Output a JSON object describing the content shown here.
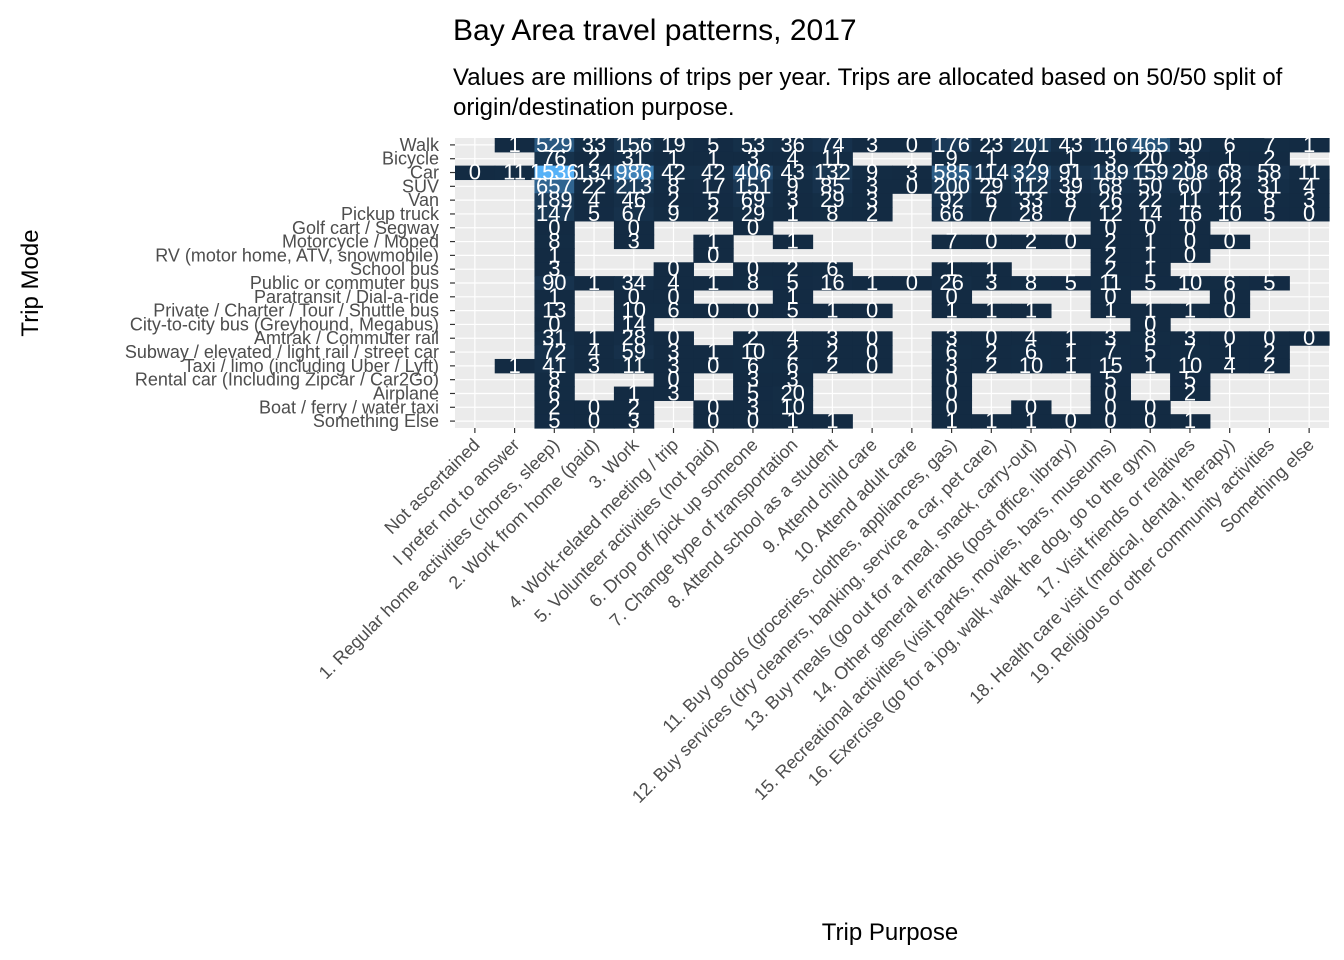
{
  "chart_data": {
    "type": "heatmap",
    "title": "Bay Area travel patterns, 2017",
    "subtitle": "Values are millions of trips per year. Trips are allocated based on 50/50 split of origin/destination purpose.",
    "xlabel": "Trip Purpose",
    "ylabel": "Trip Mode",
    "grid": true,
    "legend": "none",
    "colors": {
      "panel": "#ebebeb",
      "grid": "#ffffff",
      "low": "#132b43",
      "high": "#56b1f7",
      "label": "#ffffff"
    },
    "x": [
      "Not ascertained",
      "I prefer not to answer",
      "1. Regular home activities (chores, sleep)",
      "2. Work from home (paid)",
      "3. Work",
      "4. Work-related meeting / trip",
      "5. Volunteer activities (not paid)",
      "6. Drop off /pick up someone",
      "7. Change type of transportation",
      "8. Attend school as a student",
      "9. Attend child care",
      "10. Attend adult care",
      "11. Buy goods (groceries, clothes, appliances, gas)",
      "12. Buy services (dry cleaners, banking, service a car, pet care)",
      "13. Buy meals (go out for a meal, snack, carry-out)",
      "14. Other general errands (post office, library)",
      "15. Recreational activities (visit parks, movies, bars, museums)",
      "16. Exercise (go for a jog, walk, walk the dog, go to the gym)",
      "17. Visit friends or relatives",
      "18. Health care visit (medical, dental, therapy)",
      "19. Religious or other community activities",
      "Something else"
    ],
    "y": [
      "Walk",
      "Bicycle",
      "Car",
      "SUV",
      "Van",
      "Pickup truck",
      "Golf cart / Segway",
      "Motorcycle / Moped",
      "RV (motor home, ATV, snowmobile)",
      "School bus",
      "Public or commuter bus",
      "Paratransit / Dial-a-ride",
      "Private / Charter / Tour / Shuttle bus",
      "City-to-city bus (Greyhound, Megabus)",
      "Amtrak / Commuter rail",
      "Subway / elevated / light rail / street car",
      "Taxi / limo (including Uber / Lyft)",
      "Rental car (Including Zipcar / Car2Go)",
      "Airplane",
      "Boat / ferry / water taxi",
      "Something Else"
    ],
    "values": [
      [
        null,
        1,
        529,
        33,
        156,
        19,
        5,
        53,
        36,
        74,
        3,
        0,
        176,
        23,
        201,
        43,
        116,
        465,
        50,
        6,
        7,
        1
      ],
      [
        null,
        null,
        76,
        2,
        31,
        1,
        1,
        3,
        4,
        11,
        null,
        null,
        9,
        1,
        7,
        1,
        3,
        20,
        3,
        1,
        2,
        null
      ],
      [
        0,
        11,
        1536,
        134,
        986,
        42,
        42,
        406,
        43,
        132,
        9,
        3,
        585,
        114,
        329,
        91,
        189,
        159,
        208,
        68,
        58,
        11
      ],
      [
        null,
        null,
        657,
        22,
        213,
        8,
        17,
        151,
        9,
        85,
        3,
        0,
        200,
        29,
        112,
        39,
        68,
        50,
        60,
        12,
        31,
        4
      ],
      [
        null,
        null,
        189,
        4,
        46,
        2,
        5,
        69,
        3,
        29,
        3,
        null,
        92,
        6,
        33,
        8,
        26,
        22,
        11,
        12,
        8,
        3
      ],
      [
        null,
        null,
        147,
        5,
        67,
        9,
        2,
        29,
        1,
        8,
        2,
        null,
        66,
        7,
        28,
        7,
        12,
        14,
        16,
        10,
        5,
        0
      ],
      [
        null,
        null,
        0,
        null,
        0,
        null,
        null,
        0,
        null,
        null,
        null,
        null,
        null,
        null,
        null,
        null,
        0,
        0,
        0,
        null,
        null,
        null
      ],
      [
        null,
        null,
        8,
        null,
        3,
        null,
        1,
        null,
        1,
        null,
        null,
        null,
        7,
        0,
        2,
        0,
        2,
        1,
        0,
        0,
        null,
        null
      ],
      [
        null,
        null,
        1,
        null,
        null,
        null,
        0,
        null,
        null,
        null,
        null,
        null,
        null,
        null,
        null,
        null,
        2,
        1,
        0,
        null,
        null,
        null
      ],
      [
        null,
        null,
        3,
        null,
        null,
        0,
        null,
        0,
        2,
        6,
        null,
        null,
        1,
        1,
        null,
        null,
        2,
        1,
        null,
        null,
        null,
        null
      ],
      [
        null,
        null,
        90,
        1,
        34,
        4,
        1,
        8,
        5,
        16,
        1,
        0,
        26,
        3,
        8,
        5,
        11,
        5,
        10,
        6,
        5,
        null
      ],
      [
        null,
        null,
        1,
        null,
        0,
        0,
        null,
        null,
        1,
        null,
        null,
        null,
        0,
        null,
        null,
        null,
        0,
        null,
        null,
        0,
        null,
        null
      ],
      [
        null,
        null,
        13,
        null,
        10,
        6,
        0,
        0,
        5,
        1,
        0,
        null,
        1,
        1,
        1,
        null,
        1,
        1,
        1,
        0,
        null,
        null
      ],
      [
        null,
        null,
        0,
        null,
        14,
        null,
        null,
        null,
        null,
        null,
        null,
        null,
        null,
        null,
        null,
        null,
        null,
        0,
        null,
        null,
        null,
        null
      ],
      [
        null,
        null,
        31,
        1,
        28,
        0,
        null,
        2,
        4,
        3,
        0,
        null,
        3,
        0,
        4,
        1,
        3,
        8,
        3,
        0,
        0,
        0
      ],
      [
        null,
        null,
        72,
        4,
        59,
        3,
        1,
        10,
        2,
        2,
        0,
        null,
        6,
        2,
        6,
        1,
        7,
        5,
        7,
        1,
        2,
        null
      ],
      [
        null,
        1,
        41,
        3,
        11,
        3,
        0,
        6,
        6,
        2,
        0,
        null,
        3,
        2,
        10,
        1,
        15,
        1,
        10,
        4,
        2,
        null
      ],
      [
        null,
        null,
        8,
        null,
        null,
        0,
        null,
        3,
        3,
        null,
        null,
        null,
        0,
        null,
        null,
        null,
        5,
        null,
        5,
        null,
        null,
        null
      ],
      [
        null,
        null,
        6,
        null,
        1,
        3,
        null,
        5,
        20,
        null,
        null,
        null,
        0,
        null,
        null,
        null,
        0,
        null,
        2,
        null,
        null,
        null
      ],
      [
        null,
        null,
        2,
        0,
        2,
        null,
        0,
        3,
        10,
        null,
        null,
        null,
        0,
        null,
        0,
        null,
        0,
        0,
        null,
        null,
        null,
        null
      ],
      [
        null,
        null,
        5,
        0,
        3,
        null,
        0,
        0,
        1,
        1,
        null,
        null,
        1,
        1,
        1,
        0,
        0,
        0,
        1,
        null,
        null,
        null
      ]
    ]
  }
}
